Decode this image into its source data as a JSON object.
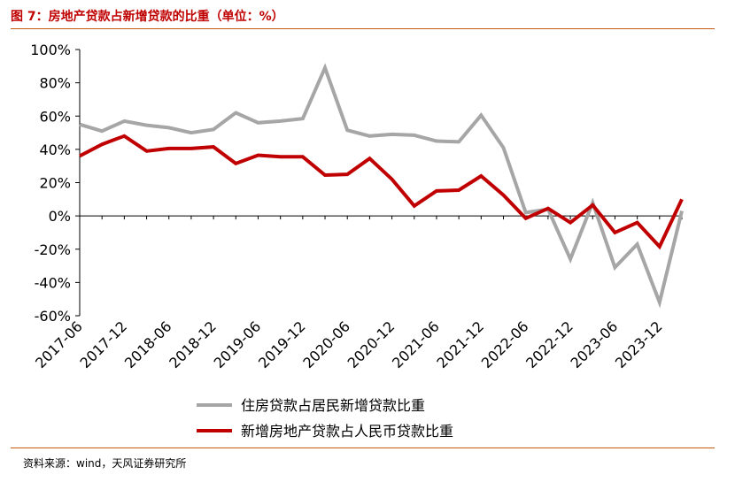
{
  "header": {
    "title": "图 7：房地产贷款占新增贷款的比重（单位：%）"
  },
  "source": "资料来源：wind，天风证券研究所",
  "chart_data": {
    "type": "line",
    "title": "图 7：房地产贷款占新增贷款的比重（单位：%）",
    "xlabel": "",
    "ylabel": "",
    "ylim": [
      -60,
      100
    ],
    "y_ticks": [
      100,
      80,
      60,
      40,
      20,
      0,
      -20,
      -40,
      -60
    ],
    "y_tick_labels": [
      "100%",
      "80%",
      "60%",
      "40%",
      "20%",
      "0%",
      "-20%",
      "-40%",
      "-60%"
    ],
    "x": [
      "2017-06",
      "2017-09",
      "2017-12",
      "2018-03",
      "2018-06",
      "2018-09",
      "2018-12",
      "2019-03",
      "2019-06",
      "2019-09",
      "2019-12",
      "2020-03",
      "2020-06",
      "2020-09",
      "2020-12",
      "2021-03",
      "2021-06",
      "2021-09",
      "2021-12",
      "2022-03",
      "2022-06",
      "2022-09",
      "2022-12",
      "2023-03",
      "2023-06",
      "2023-09",
      "2023-12",
      "2024-03"
    ],
    "x_tick_labels": [
      "2017-06",
      "2017-12",
      "2018-06",
      "2018-12",
      "2019-06",
      "2019-12",
      "2020-06",
      "2020-12",
      "2021-06",
      "2021-12",
      "2022-06",
      "2022-12",
      "2023-06",
      "2023-12"
    ],
    "series": [
      {
        "name": "住房贷款占居民新增贷款比重",
        "color": "#A6A6A6",
        "values": [
          55,
          51,
          57,
          54.5,
          53,
          50,
          52,
          62,
          56,
          57,
          58.5,
          89,
          51.5,
          48,
          49,
          48.5,
          45,
          44.5,
          60.5,
          41,
          2,
          4,
          -26,
          8,
          -31,
          -17,
          -52,
          3
        ]
      },
      {
        "name": "新增房地产贷款占人民币贷款比重",
        "color": "#C00000",
        "values": [
          36,
          43,
          48,
          39,
          40.5,
          40.5,
          41.5,
          31.5,
          36.5,
          35.5,
          35.5,
          24.5,
          25,
          34.5,
          22,
          6,
          15,
          15.5,
          24,
          12.5,
          -1.5,
          4.5,
          -4,
          6.5,
          -10,
          -4,
          -18.5,
          10
        ]
      }
    ],
    "grid": false,
    "legend_position": "bottom-center"
  }
}
